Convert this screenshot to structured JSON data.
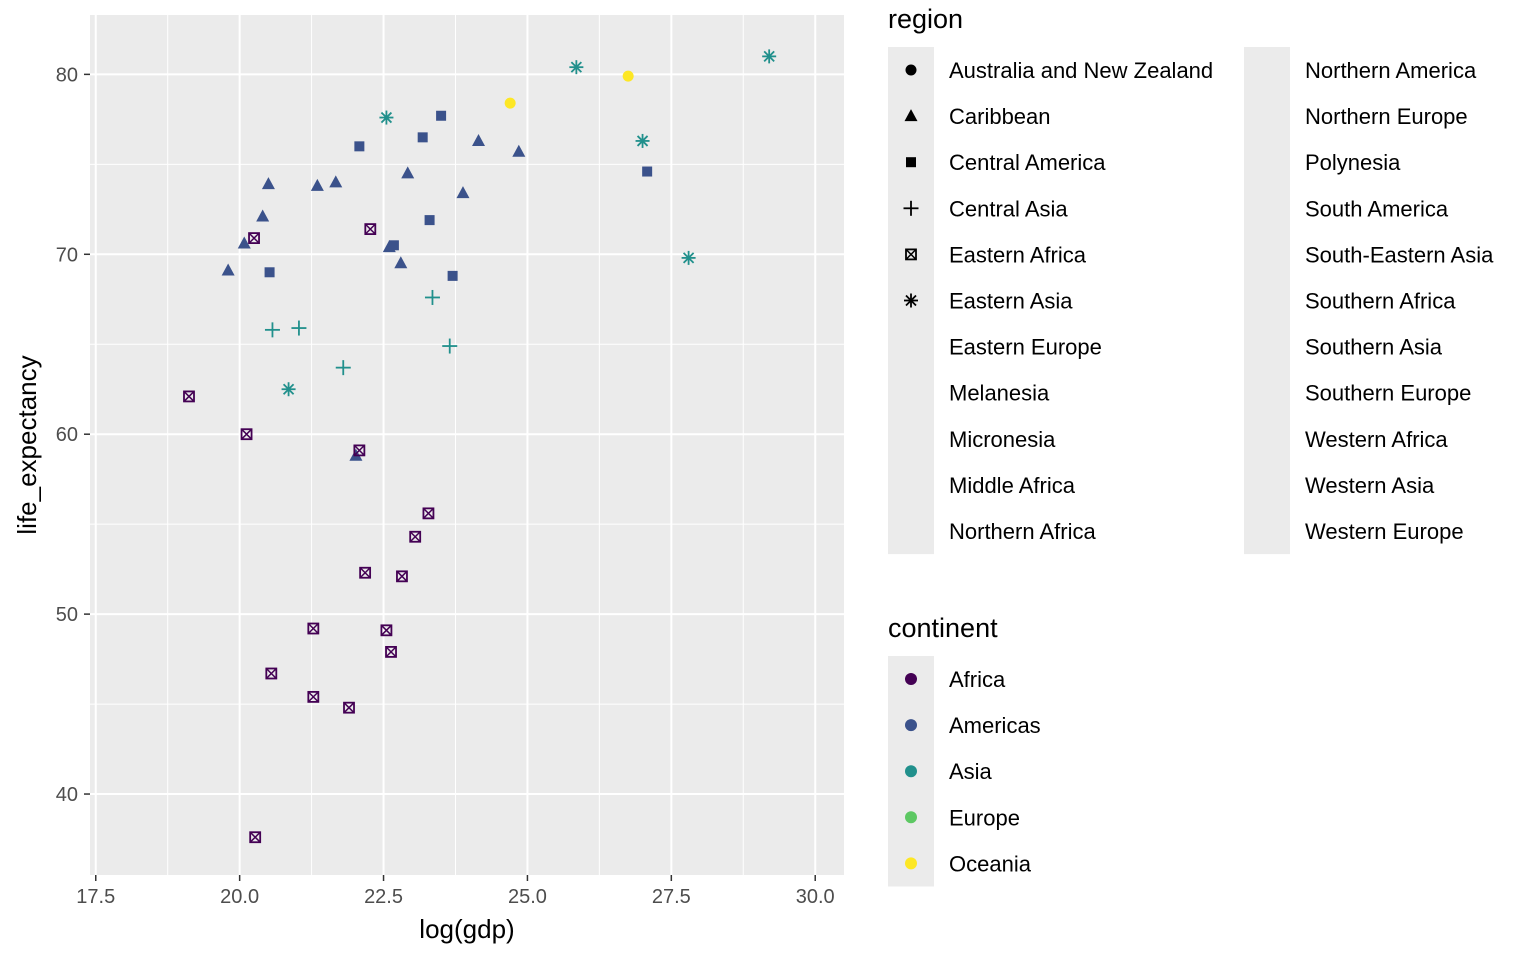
{
  "chart_data": {
    "type": "scatter",
    "xlabel": "log(gdp)",
    "ylabel": "life_expectancy",
    "xlim": [
      17.4,
      30.5
    ],
    "ylim": [
      35.5,
      83.3
    ],
    "xticks": [
      17.5,
      20.0,
      22.5,
      25.0,
      27.5,
      30.0
    ],
    "xtick_labels": [
      "17.5",
      "20.0",
      "22.5",
      "25.0",
      "27.5",
      "30.0"
    ],
    "yticks": [
      40,
      50,
      60,
      70,
      80
    ],
    "ytick_labels": [
      "40",
      "50",
      "60",
      "70",
      "80"
    ],
    "grid": true,
    "legend_placement": "right",
    "region_legend": {
      "title": "region",
      "columns": [
        [
          {
            "label": "Australia and New Zealand",
            "shape": "circle"
          },
          {
            "label": "Caribbean",
            "shape": "triangle"
          },
          {
            "label": "Central America",
            "shape": "square"
          },
          {
            "label": "Central Asia",
            "shape": "plus"
          },
          {
            "label": "Eastern Africa",
            "shape": "square-cross"
          },
          {
            "label": "Eastern Asia",
            "shape": "asterisk"
          },
          {
            "label": "Eastern Europe",
            "shape": "none"
          },
          {
            "label": "Melanesia",
            "shape": "none"
          },
          {
            "label": "Micronesia",
            "shape": "none"
          },
          {
            "label": "Middle Africa",
            "shape": "none"
          },
          {
            "label": "Northern Africa",
            "shape": "none"
          }
        ],
        [
          {
            "label": "Northern America",
            "shape": "none"
          },
          {
            "label": "Northern Europe",
            "shape": "none"
          },
          {
            "label": "Polynesia",
            "shape": "none"
          },
          {
            "label": "South America",
            "shape": "none"
          },
          {
            "label": "South-Eastern Asia",
            "shape": "none"
          },
          {
            "label": "Southern Africa",
            "shape": "none"
          },
          {
            "label": "Southern Asia",
            "shape": "none"
          },
          {
            "label": "Southern Europe",
            "shape": "none"
          },
          {
            "label": "Western Africa",
            "shape": "none"
          },
          {
            "label": "Western Asia",
            "shape": "none"
          },
          {
            "label": "Western Europe",
            "shape": "none"
          }
        ]
      ]
    },
    "continent_legend": {
      "title": "continent",
      "items": [
        {
          "label": "Africa",
          "color": "#440154"
        },
        {
          "label": "Americas",
          "color": "#3B528B"
        },
        {
          "label": "Asia",
          "color": "#21908C"
        },
        {
          "label": "Europe",
          "color": "#5DC863"
        },
        {
          "label": "Oceania",
          "color": "#FDE725"
        }
      ]
    },
    "points": [
      {
        "x": 24.7,
        "y": 78.4,
        "continent": "Oceania",
        "region": "Australia and New Zealand"
      },
      {
        "x": 26.75,
        "y": 79.9,
        "continent": "Oceania",
        "region": "Australia and New Zealand"
      },
      {
        "x": 19.8,
        "y": 69.1,
        "continent": "Americas",
        "region": "Caribbean"
      },
      {
        "x": 20.08,
        "y": 70.6,
        "continent": "Americas",
        "region": "Caribbean"
      },
      {
        "x": 20.4,
        "y": 72.1,
        "continent": "Americas",
        "region": "Caribbean"
      },
      {
        "x": 20.5,
        "y": 73.9,
        "continent": "Americas",
        "region": "Caribbean"
      },
      {
        "x": 21.35,
        "y": 73.8,
        "continent": "Americas",
        "region": "Caribbean"
      },
      {
        "x": 21.67,
        "y": 74.0,
        "continent": "Americas",
        "region": "Caribbean"
      },
      {
        "x": 22.6,
        "y": 70.4,
        "continent": "Americas",
        "region": "Caribbean"
      },
      {
        "x": 22.8,
        "y": 69.5,
        "continent": "Americas",
        "region": "Caribbean"
      },
      {
        "x": 22.92,
        "y": 74.5,
        "continent": "Americas",
        "region": "Caribbean"
      },
      {
        "x": 23.88,
        "y": 73.4,
        "continent": "Americas",
        "region": "Caribbean"
      },
      {
        "x": 24.15,
        "y": 76.3,
        "continent": "Americas",
        "region": "Caribbean"
      },
      {
        "x": 24.85,
        "y": 75.7,
        "continent": "Americas",
        "region": "Caribbean"
      },
      {
        "x": 22.02,
        "y": 58.8,
        "continent": "Americas",
        "region": "Caribbean"
      },
      {
        "x": 20.52,
        "y": 69.0,
        "continent": "Americas",
        "region": "Central America"
      },
      {
        "x": 22.08,
        "y": 76.0,
        "continent": "Americas",
        "region": "Central America"
      },
      {
        "x": 22.68,
        "y": 70.5,
        "continent": "Americas",
        "region": "Central America"
      },
      {
        "x": 23.18,
        "y": 76.5,
        "continent": "Americas",
        "region": "Central America"
      },
      {
        "x": 23.3,
        "y": 71.9,
        "continent": "Americas",
        "region": "Central America"
      },
      {
        "x": 23.5,
        "y": 77.7,
        "continent": "Americas",
        "region": "Central America"
      },
      {
        "x": 23.7,
        "y": 68.8,
        "continent": "Americas",
        "region": "Central America"
      },
      {
        "x": 27.08,
        "y": 74.6,
        "continent": "Americas",
        "region": "Central America"
      },
      {
        "x": 20.57,
        "y": 65.8,
        "continent": "Asia",
        "region": "Central Asia"
      },
      {
        "x": 21.03,
        "y": 65.9,
        "continent": "Asia",
        "region": "Central Asia"
      },
      {
        "x": 21.8,
        "y": 63.7,
        "continent": "Asia",
        "region": "Central Asia"
      },
      {
        "x": 23.35,
        "y": 67.6,
        "continent": "Asia",
        "region": "Central Asia"
      },
      {
        "x": 23.65,
        "y": 64.9,
        "continent": "Asia",
        "region": "Central Asia"
      },
      {
        "x": 19.12,
        "y": 62.1,
        "continent": "Africa",
        "region": "Eastern Africa"
      },
      {
        "x": 20.12,
        "y": 60.0,
        "continent": "Africa",
        "region": "Eastern Africa"
      },
      {
        "x": 20.25,
        "y": 70.9,
        "continent": "Africa",
        "region": "Eastern Africa"
      },
      {
        "x": 20.27,
        "y": 37.6,
        "continent": "Africa",
        "region": "Eastern Africa"
      },
      {
        "x": 20.55,
        "y": 46.7,
        "continent": "Africa",
        "region": "Eastern Africa"
      },
      {
        "x": 21.28,
        "y": 49.2,
        "continent": "Africa",
        "region": "Eastern Africa"
      },
      {
        "x": 21.28,
        "y": 45.4,
        "continent": "Africa",
        "region": "Eastern Africa"
      },
      {
        "x": 21.9,
        "y": 44.8,
        "continent": "Africa",
        "region": "Eastern Africa"
      },
      {
        "x": 22.08,
        "y": 59.1,
        "continent": "Africa",
        "region": "Eastern Africa"
      },
      {
        "x": 22.18,
        "y": 52.3,
        "continent": "Africa",
        "region": "Eastern Africa"
      },
      {
        "x": 22.27,
        "y": 71.4,
        "continent": "Africa",
        "region": "Eastern Africa"
      },
      {
        "x": 22.55,
        "y": 49.1,
        "continent": "Africa",
        "region": "Eastern Africa"
      },
      {
        "x": 22.63,
        "y": 47.9,
        "continent": "Africa",
        "region": "Eastern Africa"
      },
      {
        "x": 22.82,
        "y": 52.1,
        "continent": "Africa",
        "region": "Eastern Africa"
      },
      {
        "x": 23.05,
        "y": 54.3,
        "continent": "Africa",
        "region": "Eastern Africa"
      },
      {
        "x": 23.28,
        "y": 55.6,
        "continent": "Africa",
        "region": "Eastern Africa"
      },
      {
        "x": 20.85,
        "y": 62.5,
        "continent": "Asia",
        "region": "Eastern Asia"
      },
      {
        "x": 22.55,
        "y": 77.6,
        "continent": "Asia",
        "region": "Eastern Asia"
      },
      {
        "x": 25.85,
        "y": 80.4,
        "continent": "Asia",
        "region": "Eastern Asia"
      },
      {
        "x": 27.0,
        "y": 76.3,
        "continent": "Asia",
        "region": "Eastern Asia"
      },
      {
        "x": 27.8,
        "y": 69.8,
        "continent": "Asia",
        "region": "Eastern Asia"
      },
      {
        "x": 29.2,
        "y": 81.0,
        "continent": "Asia",
        "region": "Eastern Asia"
      }
    ]
  }
}
